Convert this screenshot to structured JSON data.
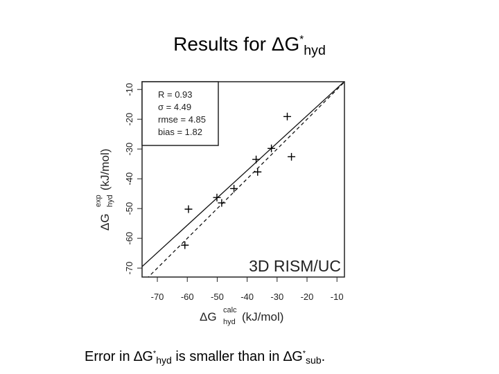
{
  "title": {
    "main": "Results for ΔG",
    "sup": "*",
    "sub": "hyd"
  },
  "chart_data": {
    "type": "scatter",
    "x_label": {
      "main": "ΔG",
      "sup": "calc",
      "sub": "hyd",
      "unit": "(kJ/mol)"
    },
    "y_label": {
      "main": "ΔG",
      "sup": "exp",
      "sub": "hyd",
      "unit": "(kJ/mol)"
    },
    "stats": [
      "R = 0.93",
      "σ = 4.49",
      "rmse = 4.85",
      "bias = 1.82"
    ],
    "annotation": "3D RISM/UC",
    "x": [
      -26.6,
      -25.2,
      -31.9,
      -37.0,
      -36.5,
      -44.4,
      -50.1,
      -48.5,
      -59.6,
      -60.8
    ],
    "y": [
      -19.1,
      -32.6,
      -29.8,
      -33.5,
      -37.7,
      -43.3,
      -46.3,
      -48.1,
      -50.2,
      -62.3
    ],
    "color": "#000000",
    "xlim": [
      -75.1,
      -7.5
    ],
    "ylim": [
      -73,
      -7.4
    ],
    "xticks": [
      -70,
      -60,
      -50,
      -40,
      -30,
      -20,
      -10
    ],
    "yticks": [
      -70,
      -60,
      -50,
      -40,
      -30,
      -20,
      -10
    ],
    "lines": [
      {
        "style": "dashed",
        "slope": 1,
        "intercept": 0
      },
      {
        "style": "solid",
        "slope": 0.92,
        "intercept": -0.4
      }
    ]
  },
  "caption": {
    "text1": "Error in ∆G",
    "sup1": "*",
    "sub1": "hyd",
    "text2": " is smaller than in ∆G",
    "sup2": "*",
    "sub2": "sub",
    "end": "."
  }
}
